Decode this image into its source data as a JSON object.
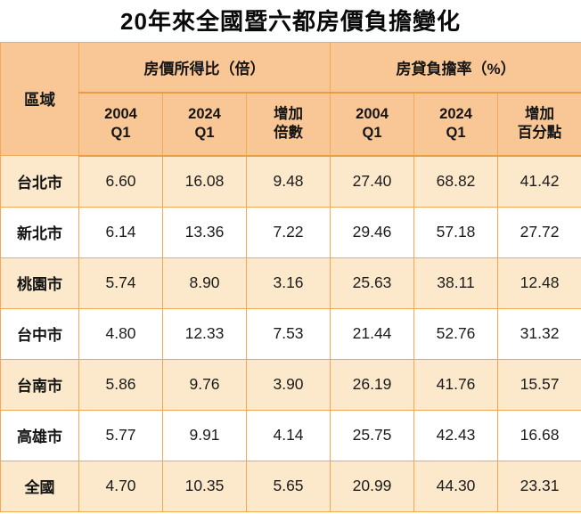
{
  "title": "20年來全國暨六都房價負擔變化",
  "table": {
    "region_header": "區域",
    "groups": [
      {
        "label": "房價所得比（倍）",
        "columns": [
          {
            "line1": "2004",
            "line2": "Q1"
          },
          {
            "line1": "2024",
            "line2": "Q1"
          },
          {
            "line1": "增加",
            "line2": "倍數"
          }
        ]
      },
      {
        "label": "房貸負擔率（%）",
        "columns": [
          {
            "line1": "2004",
            "line2": "Q1"
          },
          {
            "line1": "2024",
            "line2": "Q1"
          },
          {
            "line1": "增加",
            "line2": "百分點"
          }
        ]
      }
    ],
    "rows": [
      {
        "region": "台北市",
        "values": [
          "6.60",
          "16.08",
          "9.48",
          "27.40",
          "68.82",
          "41.42"
        ]
      },
      {
        "region": "新北市",
        "values": [
          "6.14",
          "13.36",
          "7.22",
          "29.46",
          "57.18",
          "27.72"
        ]
      },
      {
        "region": "桃園市",
        "values": [
          "5.74",
          "8.90",
          "3.16",
          "25.63",
          "38.11",
          "12.48"
        ]
      },
      {
        "region": "台中市",
        "values": [
          "4.80",
          "12.33",
          "7.53",
          "21.44",
          "52.76",
          "31.32"
        ]
      },
      {
        "region": "台南市",
        "values": [
          "5.86",
          "9.76",
          "3.90",
          "26.19",
          "41.76",
          "15.57"
        ]
      },
      {
        "region": "高雄市",
        "values": [
          "5.77",
          "9.91",
          "4.14",
          "25.75",
          "42.43",
          "16.68"
        ]
      },
      {
        "region": "全國",
        "values": [
          "4.70",
          "10.35",
          "5.65",
          "20.99",
          "44.30",
          "23.31"
        ]
      }
    ]
  },
  "colors": {
    "header_bg": "#f9c795",
    "row_alt_bg": "#fce8cb",
    "row_bg": "#ffffff",
    "border": "#efa959",
    "border_strong": "#ea9c45",
    "text": "#141414"
  },
  "chart_data": {
    "type": "table",
    "title": "20年來全國暨六都房價負擔變化",
    "column_groups": [
      "房價所得比（倍）",
      "房貸負擔率（%）"
    ],
    "columns": [
      "區域",
      "房價所得比 2004 Q1",
      "房價所得比 2024 Q1",
      "增加倍數",
      "房貸負擔率 2004 Q1",
      "房貸負擔率 2024 Q1",
      "增加百分點"
    ],
    "rows": [
      [
        "台北市",
        6.6,
        16.08,
        9.48,
        27.4,
        68.82,
        41.42
      ],
      [
        "新北市",
        6.14,
        13.36,
        7.22,
        29.46,
        57.18,
        27.72
      ],
      [
        "桃園市",
        5.74,
        8.9,
        3.16,
        25.63,
        38.11,
        12.48
      ],
      [
        "台中市",
        4.8,
        12.33,
        7.53,
        21.44,
        52.76,
        31.32
      ],
      [
        "台南市",
        5.86,
        9.76,
        3.9,
        26.19,
        41.76,
        15.57
      ],
      [
        "高雄市",
        5.77,
        9.91,
        4.14,
        25.75,
        42.43,
        16.68
      ],
      [
        "全國",
        4.7,
        10.35,
        5.65,
        20.99,
        44.3,
        23.31
      ]
    ]
  }
}
